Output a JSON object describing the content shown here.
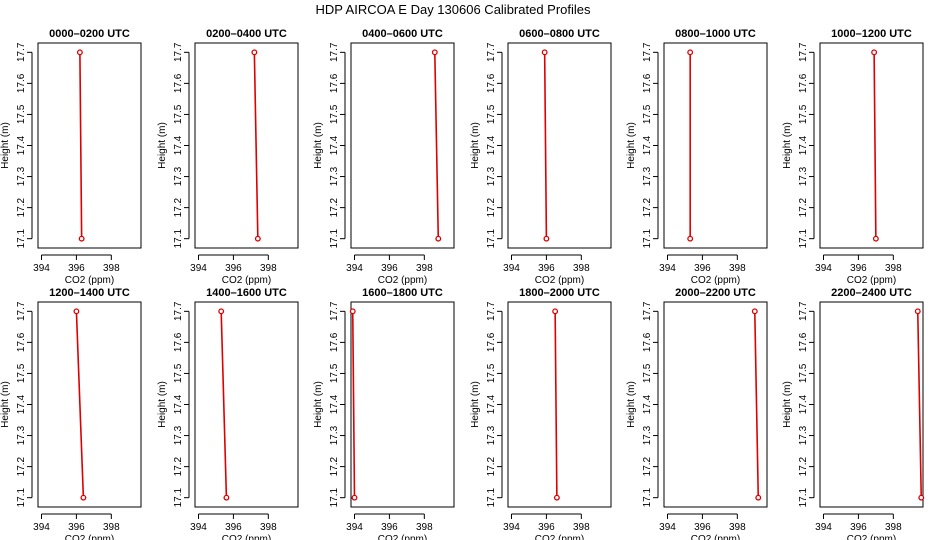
{
  "figure": {
    "title": "HDP AIRCOA E  Day 130606  Calibrated Profiles"
  },
  "chart_data": [
    {
      "type": "line",
      "title": "0000–0200 UTC",
      "xlabel": "CO2 (ppm)",
      "ylabel": "Height (m)",
      "xlim": [
        393.8,
        399.7
      ],
      "ylim": [
        17.07,
        17.73
      ],
      "xticks": [
        394,
        396,
        398
      ],
      "yticks": [
        17.1,
        17.2,
        17.3,
        17.4,
        17.5,
        17.6,
        17.7
      ],
      "series": [
        {
          "x": [
            396.2,
            396.3
          ],
          "y": [
            17.7,
            17.1
          ],
          "color": "#dd0000"
        }
      ]
    },
    {
      "type": "line",
      "title": "0200–0400 UTC",
      "xlabel": "CO2 (ppm)",
      "ylabel": "Height (m)",
      "xlim": [
        393.8,
        399.7
      ],
      "ylim": [
        17.07,
        17.73
      ],
      "xticks": [
        394,
        396,
        398
      ],
      "yticks": [
        17.1,
        17.2,
        17.3,
        17.4,
        17.5,
        17.6,
        17.7
      ],
      "series": [
        {
          "x": [
            397.2,
            397.4
          ],
          "y": [
            17.7,
            17.1
          ],
          "color": "#dd0000"
        }
      ]
    },
    {
      "type": "line",
      "title": "0400–0600 UTC",
      "xlabel": "CO2 (ppm)",
      "ylabel": "Height (m)",
      "xlim": [
        393.8,
        399.7
      ],
      "ylim": [
        17.07,
        17.73
      ],
      "xticks": [
        394,
        396,
        398
      ],
      "yticks": [
        17.1,
        17.2,
        17.3,
        17.4,
        17.5,
        17.6,
        17.7
      ],
      "series": [
        {
          "x": [
            398.6,
            398.8
          ],
          "y": [
            17.7,
            17.1
          ],
          "color": "#dd0000"
        }
      ]
    },
    {
      "type": "line",
      "title": "0600–0800 UTC",
      "xlabel": "CO2 (ppm)",
      "ylabel": "Height (m)",
      "xlim": [
        393.8,
        399.7
      ],
      "ylim": [
        17.07,
        17.73
      ],
      "xticks": [
        394,
        396,
        398
      ],
      "yticks": [
        17.1,
        17.2,
        17.3,
        17.4,
        17.5,
        17.6,
        17.7
      ],
      "series": [
        {
          "x": [
            395.9,
            396.0
          ],
          "y": [
            17.7,
            17.1
          ],
          "color": "#dd0000"
        }
      ]
    },
    {
      "type": "line",
      "title": "0800–1000 UTC",
      "xlabel": "CO2 (ppm)",
      "ylabel": "Height (m)",
      "xlim": [
        393.8,
        399.7
      ],
      "ylim": [
        17.07,
        17.73
      ],
      "xticks": [
        394,
        396,
        398
      ],
      "yticks": [
        17.1,
        17.2,
        17.3,
        17.4,
        17.5,
        17.6,
        17.7
      ],
      "series": [
        {
          "x": [
            395.3,
            395.3
          ],
          "y": [
            17.7,
            17.1
          ],
          "color": "#dd0000"
        }
      ]
    },
    {
      "type": "line",
      "title": "1000–1200 UTC",
      "xlabel": "CO2 (ppm)",
      "ylabel": "Height (m)",
      "xlim": [
        393.8,
        399.7
      ],
      "ylim": [
        17.07,
        17.73
      ],
      "xticks": [
        394,
        396,
        398
      ],
      "yticks": [
        17.1,
        17.2,
        17.3,
        17.4,
        17.5,
        17.6,
        17.7
      ],
      "series": [
        {
          "x": [
            396.9,
            397.0
          ],
          "y": [
            17.7,
            17.1
          ],
          "color": "#dd0000"
        }
      ]
    },
    {
      "type": "line",
      "title": "1200–1400 UTC",
      "xlabel": "CO2 (ppm)",
      "ylabel": "Height (m)",
      "xlim": [
        393.8,
        399.7
      ],
      "ylim": [
        17.07,
        17.73
      ],
      "xticks": [
        394,
        396,
        398
      ],
      "yticks": [
        17.1,
        17.2,
        17.3,
        17.4,
        17.5,
        17.6,
        17.7
      ],
      "series": [
        {
          "x": [
            396.0,
            396.4
          ],
          "y": [
            17.7,
            17.1
          ],
          "color": "#dd0000"
        }
      ]
    },
    {
      "type": "line",
      "title": "1400–1600 UTC",
      "xlabel": "CO2 (ppm)",
      "ylabel": "Height (m)",
      "xlim": [
        393.8,
        399.7
      ],
      "ylim": [
        17.07,
        17.73
      ],
      "xticks": [
        394,
        396,
        398
      ],
      "yticks": [
        17.1,
        17.2,
        17.3,
        17.4,
        17.5,
        17.6,
        17.7
      ],
      "series": [
        {
          "x": [
            395.3,
            395.6
          ],
          "y": [
            17.7,
            17.1
          ],
          "color": "#dd0000"
        }
      ]
    },
    {
      "type": "line",
      "title": "1600–1800 UTC",
      "xlabel": "CO2 (ppm)",
      "ylabel": "Height (m)",
      "xlim": [
        393.8,
        399.7
      ],
      "ylim": [
        17.07,
        17.73
      ],
      "xticks": [
        394,
        396,
        398
      ],
      "yticks": [
        17.1,
        17.2,
        17.3,
        17.4,
        17.5,
        17.6,
        17.7
      ],
      "series": [
        {
          "x": [
            393.9,
            394.0
          ],
          "y": [
            17.7,
            17.1
          ],
          "color": "#dd0000"
        }
      ]
    },
    {
      "type": "line",
      "title": "1800–2000 UTC",
      "xlabel": "CO2 (ppm)",
      "ylabel": "Height (m)",
      "xlim": [
        393.8,
        399.7
      ],
      "ylim": [
        17.07,
        17.73
      ],
      "xticks": [
        394,
        396,
        398
      ],
      "yticks": [
        17.1,
        17.2,
        17.3,
        17.4,
        17.5,
        17.6,
        17.7
      ],
      "series": [
        {
          "x": [
            396.5,
            396.6
          ],
          "y": [
            17.7,
            17.1
          ],
          "color": "#dd0000"
        }
      ]
    },
    {
      "type": "line",
      "title": "2000–2200 UTC",
      "xlabel": "CO2 (ppm)",
      "ylabel": "Height (m)",
      "xlim": [
        393.8,
        399.7
      ],
      "ylim": [
        17.07,
        17.73
      ],
      "xticks": [
        394,
        396,
        398
      ],
      "yticks": [
        17.1,
        17.2,
        17.3,
        17.4,
        17.5,
        17.6,
        17.7
      ],
      "series": [
        {
          "x": [
            399.0,
            399.2
          ],
          "y": [
            17.7,
            17.1
          ],
          "color": "#dd0000"
        }
      ]
    },
    {
      "type": "line",
      "title": "2200–2400 UTC",
      "xlabel": "CO2 (ppm)",
      "ylabel": "Height (m)",
      "xlim": [
        393.8,
        399.7
      ],
      "ylim": [
        17.07,
        17.73
      ],
      "xticks": [
        394,
        396,
        398
      ],
      "yticks": [
        17.1,
        17.2,
        17.3,
        17.4,
        17.5,
        17.6,
        17.7
      ],
      "series": [
        {
          "x": [
            399.4,
            399.6
          ],
          "y": [
            17.7,
            17.1
          ],
          "color": "#dd0000"
        }
      ]
    }
  ]
}
